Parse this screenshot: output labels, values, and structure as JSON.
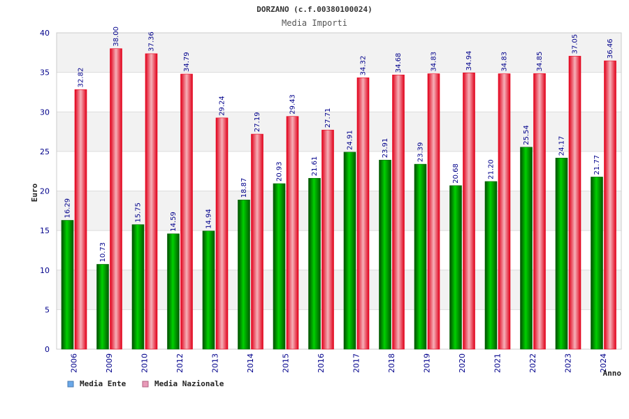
{
  "chart_data": {
    "type": "bar",
    "title": "DORZANO (c.f.00380100024)",
    "subtitle": "Media Importi",
    "ylabel": "Euro",
    "xlabel": "Anno",
    "ylim": [
      0,
      40
    ],
    "yticks": [
      0,
      5,
      10,
      15,
      20,
      25,
      30,
      35,
      40
    ],
    "categories": [
      "2006",
      "2009",
      "2010",
      "2012",
      "2013",
      "2014",
      "2015",
      "2016",
      "2017",
      "2018",
      "2019",
      "2020",
      "2021",
      "2022",
      "2023",
      "2024"
    ],
    "series": [
      {
        "name": "Media Ente",
        "values": [
          16.29,
          10.73,
          15.75,
          14.59,
          14.94,
          18.87,
          20.93,
          21.61,
          24.91,
          23.91,
          23.39,
          20.68,
          21.2,
          25.54,
          24.17,
          21.77
        ],
        "labels": [
          "16.29",
          "10.73",
          "15.75",
          "14.59",
          "14.94",
          "18.87",
          "20.93",
          "21.61",
          "24.91",
          "23.91",
          "23.39",
          "20.68",
          "21.20",
          "25.54",
          "24.17",
          "21.77"
        ]
      },
      {
        "name": "Media Nazionale",
        "values": [
          32.82,
          38.0,
          37.36,
          34.79,
          29.24,
          27.19,
          29.43,
          27.71,
          34.32,
          34.68,
          34.83,
          34.94,
          34.83,
          34.85,
          37.05,
          36.46
        ],
        "labels": [
          "32.82",
          "38.00",
          "37.36",
          "34.79",
          "29.24",
          "27.19",
          "29.43",
          "27.71",
          "34.32",
          "34.68",
          "34.83",
          "34.94",
          "34.83",
          "34.85",
          "37.05",
          "36.46"
        ]
      }
    ],
    "grid": true,
    "legend": "bottom-left"
  },
  "colors": {
    "ente": "#00b400",
    "ente_dark": "#006400",
    "nazionale": "#e8001c",
    "nazionale_light": "#f4a0a8",
    "legend_ente": "#6aa8e8",
    "legend_nazionale": "#e89ab8",
    "band": "#f2f2f2",
    "axis_text": "#00008b"
  }
}
